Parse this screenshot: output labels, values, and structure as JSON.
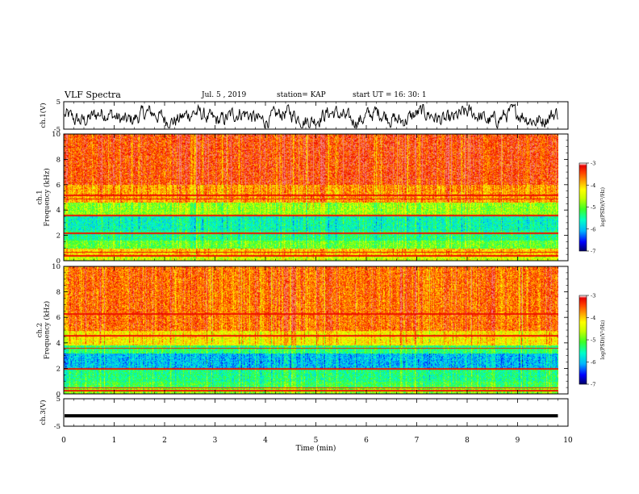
{
  "header": {
    "title": "VLF Spectra",
    "date": "Jul. 5 , 2019",
    "station": "station= KAP",
    "start": "start  UT =  16: 30: 1"
  },
  "colors": {
    "waveform": "#000000",
    "colormap": [
      "#000070",
      "#0000ff",
      "#00b4ff",
      "#00ffc8",
      "#30ff30",
      "#c8ff00",
      "#ffff00",
      "#ffaa00",
      "#ff4000",
      "#e00000",
      "#ffffff"
    ]
  },
  "chart_data": [
    {
      "type": "line",
      "name": "ch1-waveform",
      "ylabel": "ch.1(V)",
      "ylim": [
        -5,
        5
      ],
      "yticks": [
        "5",
        "-5"
      ],
      "xlim": [
        0,
        10
      ],
      "description_values": "noisy oscillating voltage roughly between -4 and 3 V across 0 to 9.8 min"
    },
    {
      "type": "heatmap",
      "name": "ch1-spectrogram",
      "ylabel": "ch.1\nFrequency (kHz)",
      "ylabel_lines": [
        "ch.1",
        "Frequency (kHz)"
      ],
      "ylim": [
        0,
        10
      ],
      "yticks": [
        "0",
        "2",
        "4",
        "6",
        "8",
        "10"
      ],
      "xlim": [
        0,
        9.8
      ],
      "colorbar": {
        "label": "log(PSD)(V²/Hz)",
        "range": [
          -7,
          -3
        ],
        "ticks": [
          "-3",
          "-4",
          "-5",
          "-6",
          "-7"
        ]
      },
      "bands_khz": [
        {
          "from": 0.0,
          "to": 0.5,
          "level": -4.5
        },
        {
          "from": 0.5,
          "to": 1.0,
          "level": -4.0
        },
        {
          "from": 1.0,
          "to": 1.6,
          "level": -5.0
        },
        {
          "from": 1.6,
          "to": 2.4,
          "level": -5.4
        },
        {
          "from": 2.4,
          "to": 3.6,
          "level": -5.6
        },
        {
          "from": 3.6,
          "to": 4.6,
          "level": -4.8
        },
        {
          "from": 4.6,
          "to": 6.0,
          "level": -3.8
        },
        {
          "from": 6.0,
          "to": 10.0,
          "level": -3.4
        }
      ],
      "lines_khz": [
        0.4,
        0.7,
        2.2,
        3.6,
        4.9,
        5.2
      ]
    },
    {
      "type": "heatmap",
      "name": "ch2-spectrogram",
      "ylabel": "ch.2\nFrequency (kHz)",
      "ylabel_lines": [
        "ch.2",
        "Frequency (kHz)"
      ],
      "ylim": [
        0,
        10
      ],
      "yticks": [
        "0",
        "2",
        "4",
        "6",
        "8",
        "10"
      ],
      "xlim": [
        0,
        9.8
      ],
      "colorbar": {
        "label": "log(PSD)(V²/Hz)",
        "range": [
          -7,
          -3
        ],
        "ticks": [
          "-3",
          "-4",
          "-5",
          "-6",
          "-7"
        ]
      },
      "bands_khz": [
        {
          "from": 0.0,
          "to": 0.5,
          "level": -4.8
        },
        {
          "from": 0.5,
          "to": 1.0,
          "level": -5.2
        },
        {
          "from": 1.0,
          "to": 2.0,
          "level": -5.4
        },
        {
          "from": 2.0,
          "to": 3.2,
          "level": -6.0
        },
        {
          "from": 3.2,
          "to": 3.8,
          "level": -5.3
        },
        {
          "from": 3.8,
          "to": 5.0,
          "level": -4.2
        },
        {
          "from": 5.0,
          "to": 10.0,
          "level": -3.6
        }
      ],
      "lines_khz": [
        0.3,
        0.5,
        2.0,
        3.6,
        4.6,
        6.3
      ]
    },
    {
      "type": "line",
      "name": "ch3-waveform",
      "ylabel": "ch.3(V)",
      "ylim": [
        -5,
        5
      ],
      "yticks": [
        "5",
        "-5"
      ],
      "xlim": [
        0,
        9.8
      ],
      "values_constant": -1.2
    }
  ],
  "xaxis": {
    "label": "Time (min)",
    "range": [
      0,
      10
    ],
    "ticks": [
      "0",
      "1",
      "2",
      "3",
      "4",
      "5",
      "6",
      "7",
      "8",
      "9",
      "10"
    ]
  }
}
